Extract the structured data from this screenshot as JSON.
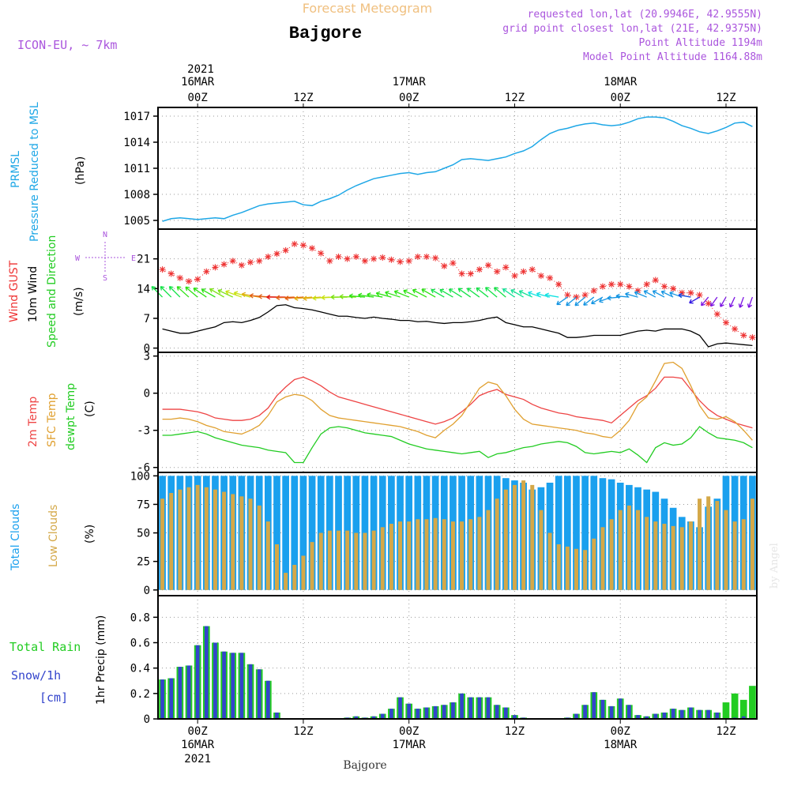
{
  "header": {
    "supertitle": "Forecast Meteogram",
    "title": "Bajgore",
    "model": "ICON-EU, ~ 7km",
    "requested": "requested lon,lat (20.9946E, 42.9555N)",
    "grid": "grid point closest lon,lat (21E, 42.9375N)",
    "altitude": "Point Altitude 1194m",
    "model_altitude": "Model Point Altitude 1164.88m",
    "footer": "Bajgore",
    "credit": "by Angel"
  },
  "time_axis": {
    "top_year": "2021",
    "labels": [
      {
        "line1": "16MAR",
        "line2": "00Z",
        "h": 0
      },
      {
        "line1": "",
        "line2": "12Z",
        "h": 12
      },
      {
        "line1": "17MAR",
        "line2": "00Z",
        "h": 24
      },
      {
        "line1": "",
        "line2": "12Z",
        "h": 36
      },
      {
        "line1": "18MAR",
        "line2": "00Z",
        "h": 48
      },
      {
        "line1": "",
        "line2": "12Z",
        "h": 60
      }
    ],
    "bottom": [
      {
        "main": "00Z",
        "date": "16MAR",
        "year": "2021",
        "h": 0
      },
      {
        "main": "12Z",
        "date": "",
        "year": "",
        "h": 12
      },
      {
        "main": "00Z",
        "date": "17MAR",
        "year": "",
        "h": 24
      },
      {
        "main": "12Z",
        "date": "",
        "year": "",
        "h": 36
      },
      {
        "main": "00Z",
        "date": "18MAR",
        "year": "",
        "h": 48
      },
      {
        "main": "12Z",
        "date": "",
        "year": "",
        "h": 60
      }
    ]
  },
  "panels": {
    "pressure": {
      "label1": "PRMSL",
      "label2": "Pressure Reduced to MSL",
      "unit": "(hPa)",
      "yticks": [
        "1017",
        "1014",
        "1011",
        "1008",
        "1005"
      ]
    },
    "wind": {
      "label1": "Wind GUST",
      "label2": "10m Wind",
      "label3": "Speed and Direction",
      "unit": "(m/s)",
      "yticks": [
        "21",
        "14",
        "7",
        "0"
      ],
      "compass_n": "N",
      "compass_s": "S",
      "compass_w": "W",
      "compass_e": "E"
    },
    "temp": {
      "label1": "2m Temp",
      "label2": "SFC Temp",
      "label3": "dewpt Temp",
      "unit": "(C)",
      "yticks": [
        "3",
        "0",
        "-3",
        "-6"
      ]
    },
    "clouds": {
      "label1": "Total Clouds",
      "label2": "Low Clouds",
      "unit": "(%)",
      "yticks": [
        "100",
        "75",
        "50",
        "25",
        "0"
      ]
    },
    "precip": {
      "label1": "Total  Rain",
      "label2": "Snow/1h",
      "label3": "[cm]",
      "unit": "1hr Precip (mm)",
      "yticks": [
        "0.8",
        "0.6",
        "0.4",
        "0.2",
        "0"
      ]
    }
  },
  "colors": {
    "pressure": "#1ea7e6",
    "gust": "#ee3333",
    "wind": "#000000",
    "temp2m": "#ee4444",
    "sfc": "#e0a030",
    "dewpt": "#22cc22",
    "total_clouds": "#1aa0ee",
    "low_clouds": "#d4a848",
    "rain": "#22cc22",
    "snow": "#3344cc",
    "purple": "#aa55dd",
    "orange_title": "#f0c080"
  },
  "chart_data": [
    {
      "type": "line",
      "name": "PRMSL",
      "ylim": [
        1004,
        1018
      ],
      "hours": [
        -4,
        63
      ],
      "x": [
        -4,
        -3,
        -2,
        -1,
        0,
        1,
        2,
        3,
        4,
        5,
        6,
        7,
        8,
        9,
        10,
        11,
        12,
        13,
        14,
        15,
        16,
        17,
        18,
        19,
        20,
        21,
        22,
        23,
        24,
        25,
        26,
        27,
        28,
        29,
        30,
        31,
        32,
        33,
        34,
        35,
        36,
        37,
        38,
        39,
        40,
        41,
        42,
        43,
        44,
        45,
        46,
        47,
        48,
        49,
        50,
        51,
        52,
        53,
        54,
        55,
        56,
        57,
        58,
        59,
        60,
        61,
        62,
        63
      ],
      "y": [
        1004.9,
        1005.2,
        1005.3,
        1005.2,
        1005.1,
        1005.2,
        1005.3,
        1005.2,
        1005.6,
        1005.9,
        1006.3,
        1006.7,
        1006.9,
        1007.0,
        1007.1,
        1007.2,
        1006.8,
        1006.7,
        1007.2,
        1007.5,
        1007.9,
        1008.5,
        1009.0,
        1009.4,
        1009.8,
        1010.0,
        1010.2,
        1010.4,
        1010.5,
        1010.3,
        1010.5,
        1010.6,
        1011.0,
        1011.4,
        1012.0,
        1012.1,
        1012.0,
        1011.9,
        1012.1,
        1012.3,
        1012.7,
        1013.0,
        1013.5,
        1014.3,
        1015.0,
        1015.4,
        1015.6,
        1015.9,
        1016.1,
        1016.2,
        1016.0,
        1015.9,
        1016.0,
        1016.3,
        1016.7,
        1016.9,
        1016.9,
        1016.8,
        1016.4,
        1015.9,
        1015.6,
        1015.2,
        1015.0,
        1015.3,
        1015.7,
        1016.2,
        1016.3,
        1015.8
      ]
    },
    {
      "type": "line",
      "name": "Wind GUST",
      "ylim": [
        -1,
        28
      ],
      "x": [
        -4,
        -3,
        -2,
        -1,
        0,
        1,
        2,
        3,
        4,
        5,
        6,
        7,
        8,
        9,
        10,
        11,
        12,
        13,
        14,
        15,
        16,
        17,
        18,
        19,
        20,
        21,
        22,
        23,
        24,
        25,
        26,
        27,
        28,
        29,
        30,
        31,
        32,
        33,
        34,
        35,
        36,
        37,
        38,
        39,
        40,
        41,
        42,
        43,
        44,
        45,
        46,
        47,
        48,
        49,
        50,
        51,
        52,
        53,
        54,
        55,
        56,
        57,
        58,
        59,
        60,
        61,
        62,
        63
      ],
      "gust": [
        18.5,
        17.5,
        16.5,
        15.7,
        16.2,
        18.0,
        19.0,
        19.7,
        20.5,
        19.5,
        20.2,
        20.5,
        21.5,
        22.2,
        23.0,
        24.5,
        24.2,
        23.5,
        22.3,
        20.5,
        21.5,
        21.0,
        21.5,
        20.5,
        21.0,
        21.3,
        20.8,
        20.3,
        20.5,
        21.5,
        21.5,
        21.2,
        19.3,
        20.0,
        17.5,
        17.5,
        18.5,
        19.5,
        18.0,
        19.0,
        17.0,
        18.0,
        18.5,
        17.0,
        16.5,
        15.0,
        12.5,
        12.0,
        12.5,
        13.5,
        14.5,
        15.0,
        15.0,
        14.5,
        13.5,
        15.0,
        16.0,
        14.5,
        14.0,
        13.0,
        13.0,
        12.5,
        10.5,
        8.0,
        6.0,
        4.5,
        3.0,
        2.5
      ],
      "wind": [
        4.5,
        4.0,
        3.5,
        3.5,
        4.0,
        4.5,
        5.0,
        6.0,
        6.2,
        6.0,
        6.5,
        7.2,
        8.5,
        10.0,
        10.2,
        9.5,
        9.3,
        9.0,
        8.5,
        8.0,
        7.5,
        7.5,
        7.2,
        7.0,
        7.3,
        7.0,
        6.8,
        6.5,
        6.5,
        6.2,
        6.3,
        6.0,
        5.8,
        6.0,
        6.0,
        6.2,
        6.5,
        7.0,
        7.3,
        6.0,
        5.5,
        5.0,
        5.0,
        4.5,
        4.0,
        3.5,
        2.5,
        2.5,
        2.7,
        3.0,
        3.0,
        3.0,
        3.0,
        3.5,
        4.0,
        4.2,
        4.0,
        4.5,
        4.5,
        4.5,
        4.0,
        3.0,
        0.3,
        1.0,
        1.2,
        1.0,
        0.8,
        0.6
      ],
      "dir": [
        315,
        315,
        315,
        312,
        310,
        305,
        300,
        300,
        295,
        290,
        285,
        280,
        275,
        272,
        270,
        268,
        266,
        265,
        265,
        266,
        268,
        270,
        272,
        275,
        278,
        280,
        285,
        288,
        292,
        295,
        298,
        300,
        300,
        300,
        302,
        305,
        306,
        308,
        310,
        310,
        305,
        300,
        295,
        290,
        285,
        280,
        235,
        230,
        230,
        232,
        240,
        250,
        265,
        275,
        285,
        292,
        298,
        298,
        296,
        290,
        280,
        240,
        220,
        215,
        210,
        205,
        200,
        200
      ],
      "speed": [
        12,
        12,
        12,
        13,
        13,
        13,
        13,
        14,
        14,
        15,
        15,
        16,
        17,
        17,
        18,
        17,
        17,
        16,
        16,
        15,
        15,
        14,
        14,
        13,
        13,
        13,
        13,
        13,
        13,
        13,
        13,
        13,
        12,
        12,
        12,
        12,
        12,
        12,
        12,
        12,
        11,
        11,
        11,
        10,
        10,
        10,
        9,
        9,
        9,
        9,
        9,
        9,
        9,
        9,
        9,
        9,
        9,
        9,
        9,
        9,
        8,
        7,
        6,
        6,
        6,
        6,
        6,
        6
      ]
    },
    {
      "type": "line",
      "name": "Temperature",
      "ylim": [
        -6.4,
        3.3
      ],
      "x": [
        -4,
        -3,
        -2,
        -1,
        0,
        1,
        2,
        3,
        4,
        5,
        6,
        7,
        8,
        9,
        10,
        11,
        12,
        13,
        14,
        15,
        16,
        17,
        18,
        19,
        20,
        21,
        22,
        23,
        24,
        25,
        26,
        27,
        28,
        29,
        30,
        31,
        32,
        33,
        34,
        35,
        36,
        37,
        38,
        39,
        40,
        41,
        42,
        43,
        44,
        45,
        46,
        47,
        48,
        49,
        50,
        51,
        52,
        53,
        54,
        55,
        56,
        57,
        58,
        59,
        60,
        61,
        62,
        63
      ],
      "t2m": [
        -1.3,
        -1.3,
        -1.3,
        -1.4,
        -1.5,
        -1.7,
        -2.0,
        -2.1,
        -2.2,
        -2.2,
        -2.1,
        -1.8,
        -1.2,
        -0.2,
        0.5,
        1.1,
        1.3,
        1.0,
        0.6,
        0.1,
        -0.3,
        -0.5,
        -0.7,
        -0.9,
        -1.1,
        -1.3,
        -1.5,
        -1.7,
        -1.9,
        -2.1,
        -2.3,
        -2.5,
        -2.3,
        -2.0,
        -1.5,
        -0.9,
        -0.2,
        0.1,
        0.3,
        -0.1,
        -0.3,
        -0.5,
        -0.9,
        -1.2,
        -1.4,
        -1.6,
        -1.7,
        -1.9,
        -2.0,
        -2.1,
        -2.2,
        -2.4,
        -1.8,
        -1.2,
        -0.6,
        -0.2,
        0.4,
        1.3,
        1.3,
        1.2,
        0.3,
        -0.6,
        -1.3,
        -1.8,
        -2.1,
        -2.4,
        -2.6,
        -2.8
      ],
      "sfc": [
        -2.1,
        -2.1,
        -2.0,
        -2.1,
        -2.3,
        -2.6,
        -2.8,
        -3.1,
        -3.2,
        -3.3,
        -3.0,
        -2.6,
        -1.8,
        -0.7,
        -0.3,
        -0.1,
        -0.2,
        -0.6,
        -1.3,
        -1.8,
        -2.0,
        -2.1,
        -2.2,
        -2.3,
        -2.4,
        -2.5,
        -2.6,
        -2.7,
        -2.9,
        -3.1,
        -3.4,
        -3.6,
        -3.0,
        -2.5,
        -1.8,
        -0.7,
        0.4,
        0.9,
        0.7,
        -0.2,
        -1.3,
        -2.1,
        -2.5,
        -2.6,
        -2.7,
        -2.8,
        -2.9,
        -3.0,
        -3.2,
        -3.3,
        -3.5,
        -3.6,
        -3.0,
        -2.2,
        -0.9,
        -0.3,
        1.0,
        2.4,
        2.5,
        2.0,
        0.6,
        -1.0,
        -2.0,
        -2.1,
        -1.9,
        -2.3,
        -3.0,
        -3.8
      ],
      "dewpt": [
        -3.4,
        -3.4,
        -3.3,
        -3.2,
        -3.1,
        -3.3,
        -3.6,
        -3.8,
        -4.0,
        -4.2,
        -4.3,
        -4.4,
        -4.6,
        -4.7,
        -4.8,
        -5.6,
        -5.6,
        -4.4,
        -3.3,
        -2.8,
        -2.7,
        -2.8,
        -3.0,
        -3.2,
        -3.3,
        -3.4,
        -3.5,
        -3.8,
        -4.1,
        -4.3,
        -4.5,
        -4.6,
        -4.7,
        -4.8,
        -4.9,
        -4.8,
        -4.7,
        -5.2,
        -4.9,
        -4.8,
        -4.6,
        -4.4,
        -4.3,
        -4.1,
        -4.0,
        -3.9,
        -4.0,
        -4.3,
        -4.8,
        -4.9,
        -4.8,
        -4.7,
        -4.8,
        -4.5,
        -5.0,
        -5.6,
        -4.4,
        -4.0,
        -4.2,
        -4.1,
        -3.6,
        -2.7,
        -3.2,
        -3.6,
        -3.7,
        -3.8,
        -4.0,
        -4.4
      ]
    },
    {
      "type": "bar",
      "name": "Clouds",
      "ylim": [
        -5,
        103
      ],
      "x": [
        -4,
        -3,
        -2,
        -1,
        0,
        1,
        2,
        3,
        4,
        5,
        6,
        7,
        8,
        9,
        10,
        11,
        12,
        13,
        14,
        15,
        16,
        17,
        18,
        19,
        20,
        21,
        22,
        23,
        24,
        25,
        26,
        27,
        28,
        29,
        30,
        31,
        32,
        33,
        34,
        35,
        36,
        37,
        38,
        39,
        40,
        41,
        42,
        43,
        44,
        45,
        46,
        47,
        48,
        49,
        50,
        51,
        52,
        53,
        54,
        55,
        56,
        57,
        58,
        59,
        60,
        61,
        62,
        63
      ],
      "total": [
        100,
        100,
        100,
        100,
        100,
        100,
        100,
        100,
        100,
        100,
        100,
        100,
        100,
        100,
        100,
        100,
        100,
        100,
        100,
        100,
        100,
        100,
        100,
        100,
        100,
        100,
        100,
        100,
        100,
        100,
        100,
        100,
        100,
        100,
        100,
        100,
        100,
        100,
        100,
        98,
        96,
        94,
        88,
        90,
        94,
        100,
        100,
        100,
        100,
        100,
        98,
        97,
        94,
        92,
        90,
        88,
        86,
        80,
        72,
        64,
        60,
        55,
        73,
        80,
        100,
        100,
        100,
        100
      ],
      "low": [
        80,
        85,
        88,
        90,
        92,
        90,
        88,
        86,
        84,
        82,
        80,
        74,
        60,
        40,
        15,
        22,
        30,
        42,
        50,
        52,
        52,
        52,
        50,
        50,
        52,
        55,
        58,
        60,
        60,
        62,
        62,
        63,
        62,
        60,
        60,
        62,
        64,
        70,
        80,
        88,
        92,
        96,
        92,
        70,
        50,
        40,
        38,
        36,
        35,
        45,
        55,
        62,
        70,
        74,
        70,
        64,
        60,
        58,
        56,
        55,
        60,
        80,
        82,
        78,
        70,
        60,
        62,
        80
      ]
    },
    {
      "type": "bar",
      "name": "Precipitation",
      "ylim": [
        0,
        0.97
      ],
      "x": [
        -4,
        -3,
        -2,
        -1,
        0,
        1,
        2,
        3,
        4,
        5,
        6,
        7,
        8,
        9,
        10,
        11,
        12,
        13,
        14,
        15,
        16,
        17,
        18,
        19,
        20,
        21,
        22,
        23,
        24,
        25,
        26,
        27,
        28,
        29,
        30,
        31,
        32,
        33,
        34,
        35,
        36,
        37,
        38,
        39,
        40,
        41,
        42,
        43,
        44,
        45,
        46,
        47,
        48,
        49,
        50,
        51,
        52,
        53,
        54,
        55,
        56,
        57,
        58,
        59,
        60,
        61,
        62,
        63
      ],
      "rain": [
        0.31,
        0.32,
        0.41,
        0.42,
        0.58,
        0.73,
        0.6,
        0.53,
        0.52,
        0.52,
        0.43,
        0.39,
        0.3,
        0.05,
        0,
        0,
        0,
        0,
        0,
        0,
        0,
        0.01,
        0.02,
        0.01,
        0.02,
        0.04,
        0.08,
        0.17,
        0.12,
        0.08,
        0.09,
        0.1,
        0.11,
        0.13,
        0.2,
        0.17,
        0.17,
        0.17,
        0.11,
        0.09,
        0.03,
        0.01,
        0,
        0,
        0,
        0,
        0.01,
        0.04,
        0.11,
        0.21,
        0.15,
        0.1,
        0.16,
        0.11,
        0.03,
        0.02,
        0.04,
        0.05,
        0.08,
        0.07,
        0.09,
        0.07,
        0.07,
        0.05,
        0.13,
        0.2,
        0.15,
        0.26
      ],
      "snow": [
        0.31,
        0.32,
        0.41,
        0.42,
        0.58,
        0.73,
        0.6,
        0.53,
        0.52,
        0.52,
        0.43,
        0.39,
        0.3,
        0.05,
        0,
        0,
        0,
        0,
        0,
        0,
        0,
        0.01,
        0.02,
        0.01,
        0.02,
        0.04,
        0.08,
        0.17,
        0.12,
        0.08,
        0.09,
        0.1,
        0.11,
        0.13,
        0.2,
        0.17,
        0.17,
        0.17,
        0.11,
        0.09,
        0.03,
        0.01,
        0,
        0,
        0,
        0,
        0.01,
        0.04,
        0.11,
        0.21,
        0.15,
        0.1,
        0.16,
        0.11,
        0.03,
        0.02,
        0.04,
        0.05,
        0.08,
        0.07,
        0.09,
        0.07,
        0.07,
        0.05,
        0,
        0.01,
        0.02,
        0
      ]
    }
  ]
}
